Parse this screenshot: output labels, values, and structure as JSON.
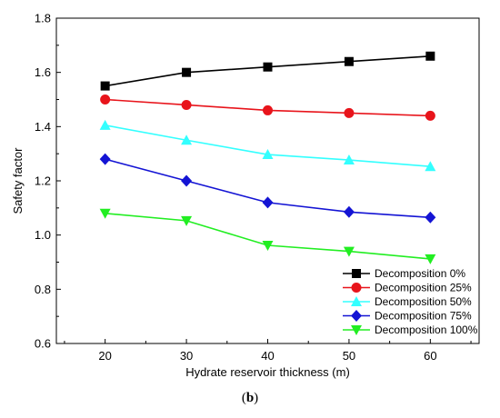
{
  "chart_data": {
    "type": "line",
    "xlabel": "Hydrate reservoir thickness (m)",
    "ylabel": "Safety factor",
    "xlim": [
      14,
      66
    ],
    "ylim": [
      0.6,
      1.8
    ],
    "xticks": [
      20,
      30,
      40,
      50,
      60
    ],
    "yticks": [
      0.6,
      0.8,
      1.0,
      1.2,
      1.4,
      1.6,
      1.8
    ],
    "ytick_labels": [
      "0.6",
      "0.8",
      "1.0",
      "1.2",
      "1.4",
      "1.6",
      "1.8"
    ],
    "grid": false,
    "legend_position": "bottom-right",
    "x": [
      20,
      30,
      40,
      50,
      60
    ],
    "series": [
      {
        "name": "Decomposition 0%",
        "values": [
          1.55,
          1.6,
          1.62,
          1.64,
          1.66
        ],
        "color": "#000000",
        "marker": "square"
      },
      {
        "name": "Decomposition 25%",
        "values": [
          1.5,
          1.48,
          1.46,
          1.45,
          1.44
        ],
        "color": "#e8141b",
        "marker": "circle"
      },
      {
        "name": "Decomposition 50%",
        "values": [
          1.405,
          1.35,
          1.297,
          1.277,
          1.253
        ],
        "color": "#33ffff",
        "marker": "triangle-up"
      },
      {
        "name": "Decomposition 75%",
        "values": [
          1.28,
          1.2,
          1.12,
          1.085,
          1.065
        ],
        "color": "#1414d4",
        "marker": "diamond"
      },
      {
        "name": "Decomposition 100%",
        "values": [
          1.08,
          1.053,
          0.962,
          0.94,
          0.912
        ],
        "color": "#22ee22",
        "marker": "triangle-down"
      }
    ]
  },
  "caption": {
    "open": "(",
    "letter": "b",
    "close": ")"
  }
}
